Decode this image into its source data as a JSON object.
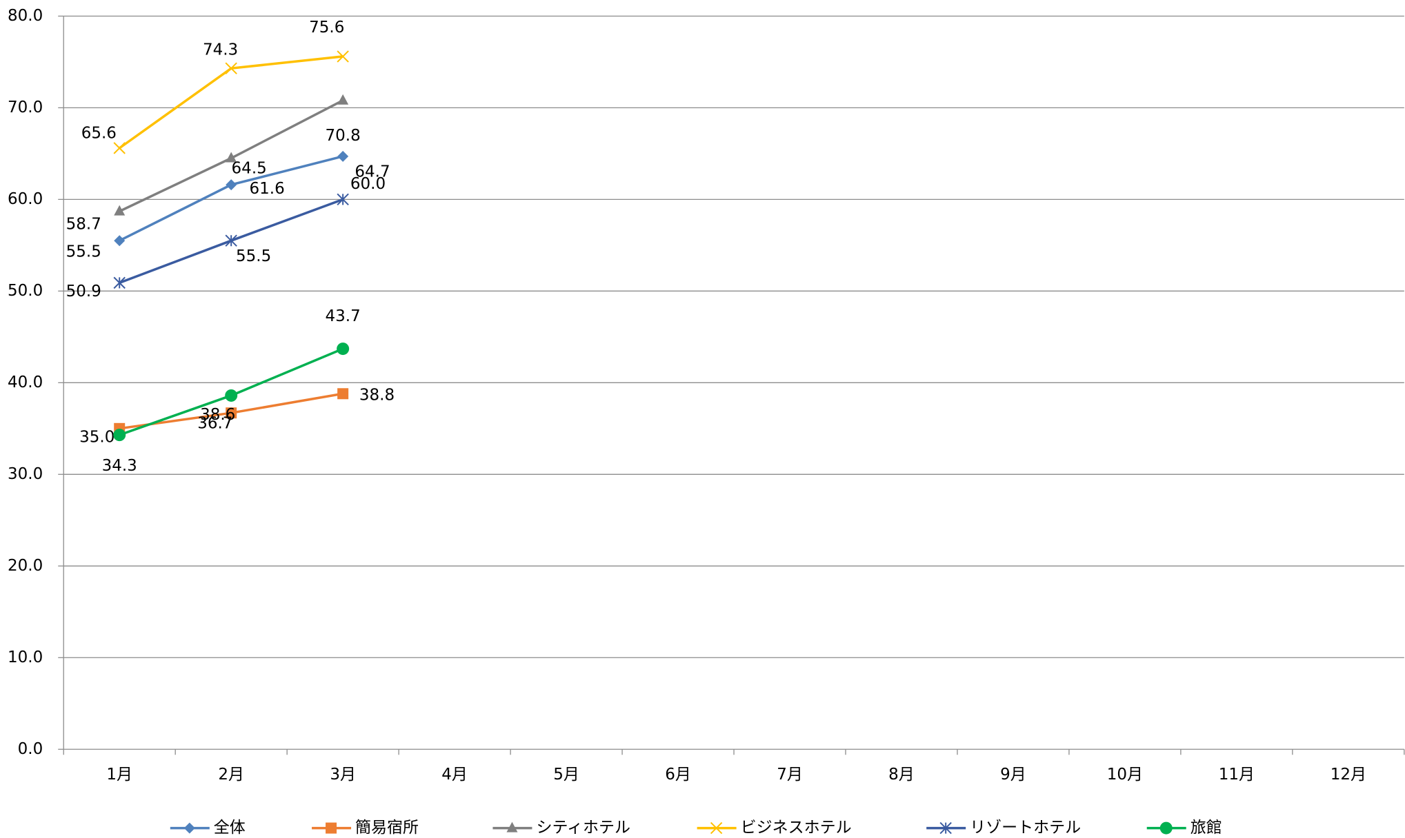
{
  "chart_data": {
    "type": "line",
    "categories": [
      "1月",
      "2月",
      "3月",
      "4月",
      "5月",
      "6月",
      "7月",
      "8月",
      "9月",
      "10月",
      "11月",
      "12月"
    ],
    "series": [
      {
        "name": "全体",
        "color": "#4f81bd",
        "marker": "diamond",
        "values": [
          55.5,
          61.6,
          64.7,
          null,
          null,
          null,
          null,
          null,
          null,
          null,
          null,
          null
        ],
        "value_labels": [
          "55.5",
          "61.6",
          "64.7",
          null,
          null,
          null,
          null,
          null,
          null,
          null,
          null,
          null
        ]
      },
      {
        "name": "簡易宿所",
        "color": "#ed7d31",
        "marker": "square",
        "values": [
          35.0,
          36.7,
          38.8,
          null,
          null,
          null,
          null,
          null,
          null,
          null,
          null,
          null
        ],
        "value_labels": [
          "35.0",
          "36.7",
          "38.8",
          null,
          null,
          null,
          null,
          null,
          null,
          null,
          null,
          null
        ]
      },
      {
        "name": "シティホテル",
        "color": "#7f7f7f",
        "marker": "triangle",
        "values": [
          58.7,
          64.5,
          70.8,
          null,
          null,
          null,
          null,
          null,
          null,
          null,
          null,
          null
        ],
        "value_labels": [
          "58.7",
          "64.5",
          "70.8",
          null,
          null,
          null,
          null,
          null,
          null,
          null,
          null,
          null
        ]
      },
      {
        "name": "ビジネスホテル",
        "color": "#ffc000",
        "marker": "x",
        "values": [
          65.6,
          74.3,
          75.6,
          null,
          null,
          null,
          null,
          null,
          null,
          null,
          null,
          null
        ],
        "value_labels": [
          "65.6",
          "74.3",
          "75.6",
          null,
          null,
          null,
          null,
          null,
          null,
          null,
          null,
          null
        ]
      },
      {
        "name": "リゾートホテル",
        "color": "#3a5ba0",
        "marker": "star",
        "values": [
          50.9,
          55.5,
          60.0,
          null,
          null,
          null,
          null,
          null,
          null,
          null,
          null,
          null
        ],
        "value_labels": [
          "50.9",
          "55.5",
          "60.0",
          null,
          null,
          null,
          null,
          null,
          null,
          null,
          null,
          null
        ]
      },
      {
        "name": "旅館",
        "color": "#00b050",
        "marker": "circle",
        "values": [
          34.3,
          38.6,
          43.7,
          null,
          null,
          null,
          null,
          null,
          null,
          null,
          null,
          null
        ],
        "value_labels": [
          "34.3",
          "38.6",
          "43.7",
          null,
          null,
          null,
          null,
          null,
          null,
          null,
          null,
          null
        ]
      }
    ],
    "ylim": [
      0,
      80
    ],
    "yticks": [
      {
        "value": 0,
        "label": "0.0"
      },
      {
        "value": 10,
        "label": "10.0"
      },
      {
        "value": 20,
        "label": "20.0"
      },
      {
        "value": 30,
        "label": "30.0"
      },
      {
        "value": 40,
        "label": "40.0"
      },
      {
        "value": 50,
        "label": "50.0"
      },
      {
        "value": 60,
        "label": "60.0"
      },
      {
        "value": 70,
        "label": "70.0"
      },
      {
        "value": 80,
        "label": "80.0"
      }
    ],
    "grid": true,
    "legend": "bottom"
  }
}
